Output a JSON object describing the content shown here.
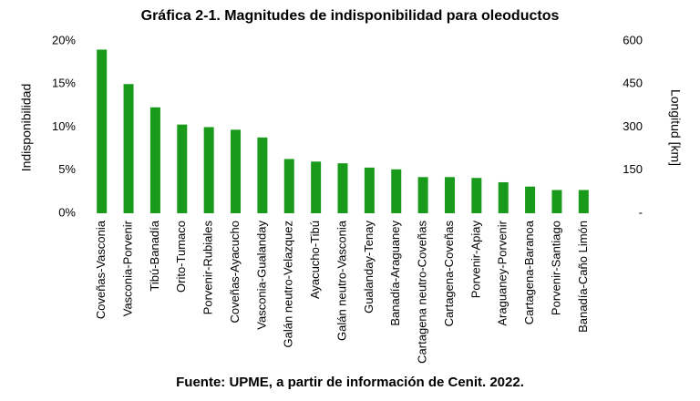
{
  "chart_data": {
    "type": "bar",
    "title": "Gráfica 2-1. Magnitudes de indisponibilidad para oleoductos",
    "y_label": "Indisponibilidad",
    "y2_label": "Longitud [km]",
    "source": "Fuente: UPME, a partir de información de Cenit. 2022.",
    "categories": [
      "Coveñas-Vasconia",
      "Vasconia-Porvenir",
      "Tibú-Banadía",
      "Orito-Tumaco",
      "Porvenir-Rubiales",
      "Coveñas-Ayacucho",
      "Vasconia-Gualanday",
      "Galán neutro-Velazquez",
      "Ayacucho-Tibú",
      "Galán neutro-Vasconia",
      "Gualanday-Tenay",
      "Banadía-Araguaney",
      "Cartagena neutro-Coveñas",
      "Cartagena-Coveñas",
      "Porvenir-Apiay",
      "Araguaney-Porvenir",
      "Cartagena-Baranoa",
      "Porvenir-Santiago",
      "Banadía-Caño Limón"
    ],
    "values": [
      19.0,
      15.0,
      12.3,
      10.3,
      10.0,
      9.7,
      8.8,
      6.3,
      6.0,
      5.8,
      5.3,
      5.1,
      4.2,
      4.2,
      4.1,
      3.6,
      3.1,
      2.7,
      2.7
    ],
    "color": "#1a9a1a",
    "ylim": [
      0,
      20
    ],
    "yticks": [
      {
        "value": 0,
        "label": "0%"
      },
      {
        "value": 5,
        "label": "5%"
      },
      {
        "value": 10,
        "label": "10%"
      },
      {
        "value": 15,
        "label": "15%"
      },
      {
        "value": 20,
        "label": "20%"
      }
    ],
    "y2lim": [
      0,
      600
    ],
    "y2ticks": [
      {
        "value": 0,
        "label": "-"
      },
      150,
      300,
      450,
      600
    ]
  }
}
